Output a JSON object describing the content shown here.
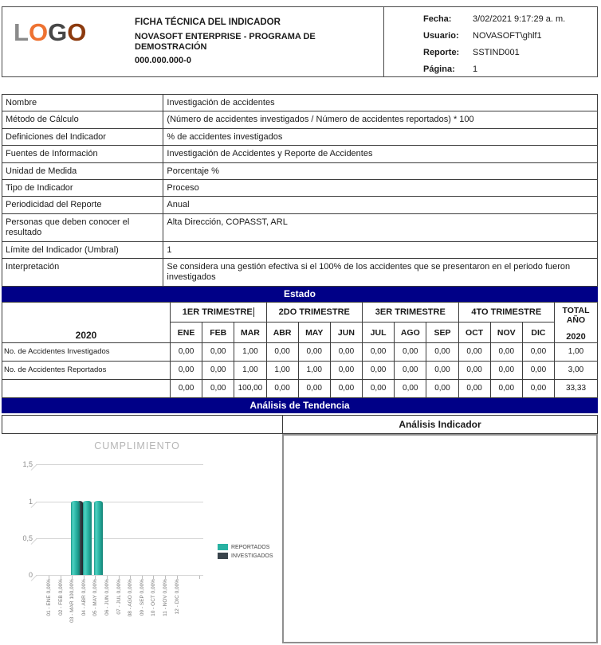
{
  "header": {
    "logo_letters": [
      {
        "ch": "L",
        "color": "#8a8a8a"
      },
      {
        "ch": "O",
        "color": "#ee7231"
      },
      {
        "ch": "G",
        "color": "#474747"
      },
      {
        "ch": "O",
        "color": "#8c3a0e"
      }
    ],
    "title": "FICHA TÉCNICA DEL INDICADOR",
    "subtitle": "NOVASOFT ENTERPRISE - PROGRAMA DE DEMOSTRACIÓN",
    "code": "000.000.000-0",
    "meta": [
      {
        "label": "Fecha:",
        "value": "3/02/2021 9:17:29 a. m."
      },
      {
        "label": "Usuario:",
        "value": "NOVASOFT\\ghlf1"
      },
      {
        "label": "Reporte:",
        "value": "SSTIND001"
      },
      {
        "label": "Página:",
        "value": "1"
      }
    ]
  },
  "info_table": {
    "rows": [
      {
        "label": "Nombre",
        "value": "Investigación de accidentes"
      },
      {
        "label": "Método de Cálculo",
        "value": "(Número de accidentes investigados / Número de accidentes reportados) * 100"
      },
      {
        "label": "Definiciones del Indicador",
        "value": "% de accidentes investigados"
      },
      {
        "label": "Fuentes de Información",
        "value": "Investigación de Accidentes y Reporte de Accidentes"
      },
      {
        "label": "Unidad de Medida",
        "value": "Porcentaje %"
      },
      {
        "label": "Tipo de Indicador",
        "value": "Proceso"
      },
      {
        "label": "Periodicidad del Reporte",
        "value": "Anual"
      },
      {
        "label": "Personas que deben conocer el resultado",
        "value": "Alta Dirección, COPASST, ARL"
      },
      {
        "label": "Límite del Indicador (Umbral)",
        "value": "1"
      },
      {
        "label": "Interpretación",
        "value": "Se considera una gestión efectiva si el 100% de los accidentes que se presentaron en el periodo fueron investigados"
      }
    ]
  },
  "estado": {
    "title": "Estado",
    "year": "2020",
    "quarters": [
      "1ER TRIMESTRE",
      "2DO TRIMESTRE",
      "3ER TRIMESTRE",
      "4TO TRIMESTRE"
    ],
    "total_label": "TOTAL AÑO",
    "total_year": "2020",
    "months": [
      "ENE",
      "FEB",
      "MAR",
      "ABR",
      "MAY",
      "JUN",
      "JUL",
      "AGO",
      "SEP",
      "OCT",
      "NOV",
      "DIC"
    ],
    "rows": [
      {
        "label": "No. de Accidentes Investigados",
        "values": [
          "0,00",
          "0,00",
          "1,00",
          "0,00",
          "0,00",
          "0,00",
          "0,00",
          "0,00",
          "0,00",
          "0,00",
          "0,00",
          "0,00"
        ],
        "total": "1,00"
      },
      {
        "label": "No. de Accidentes Reportados",
        "values": [
          "0,00",
          "0,00",
          "1,00",
          "1,00",
          "1,00",
          "0,00",
          "0,00",
          "0,00",
          "0,00",
          "0,00",
          "0,00",
          "0,00"
        ],
        "total": "3,00"
      },
      {
        "label": "",
        "values": [
          "0,00",
          "0,00",
          "100,00",
          "0,00",
          "0,00",
          "0,00",
          "0,00",
          "0,00",
          "0,00",
          "0,00",
          "0,00",
          "0,00"
        ],
        "total": "33,33"
      }
    ]
  },
  "tendencia": {
    "title": "Análisis de Tendencia",
    "analisis_title": "Análisis Indicador"
  },
  "chart_data": {
    "type": "bar",
    "title": "CUMPLIMIENTO",
    "categories": [
      "01 - ENE 0,00%",
      "02 - FEB 0,00%",
      "03 - MAR 100,00%",
      "04 - ABR 0,00%",
      "05 - MAY 0,00%",
      "06 - JUN 0,00%",
      "07 - JUL 0,00%",
      "08 - AGO 0,00%",
      "09 - SEP 0,00%",
      "10 - OCT 0,00%",
      "11 - NOV 0,00%",
      "12 - DIC 0,00%"
    ],
    "series": [
      {
        "name": "REPORTADOS",
        "color": "#28b2a2",
        "values": [
          0,
          0,
          1,
          1,
          1,
          0,
          0,
          0,
          0,
          0,
          0,
          0
        ]
      },
      {
        "name": "INVESTIGADOS",
        "color": "#39444c",
        "values": [
          0,
          0,
          1,
          0,
          0,
          0,
          0,
          0,
          0,
          0,
          0,
          0
        ]
      }
    ],
    "xlabel": "",
    "ylabel": "",
    "ylim": [
      0,
      1.5
    ],
    "yticks": [
      1.5,
      1,
      0.5,
      0
    ],
    "ytick_labels": [
      "1,5",
      "1",
      "0,5",
      "0"
    ],
    "grid": true,
    "legend_position": "right"
  },
  "colors": {
    "section_bar": "#000087",
    "reportados": "#28b2a2",
    "investigados": "#39444c",
    "table_border": "#3c3c3c",
    "analysis_box_border": "#8f8f8f"
  }
}
